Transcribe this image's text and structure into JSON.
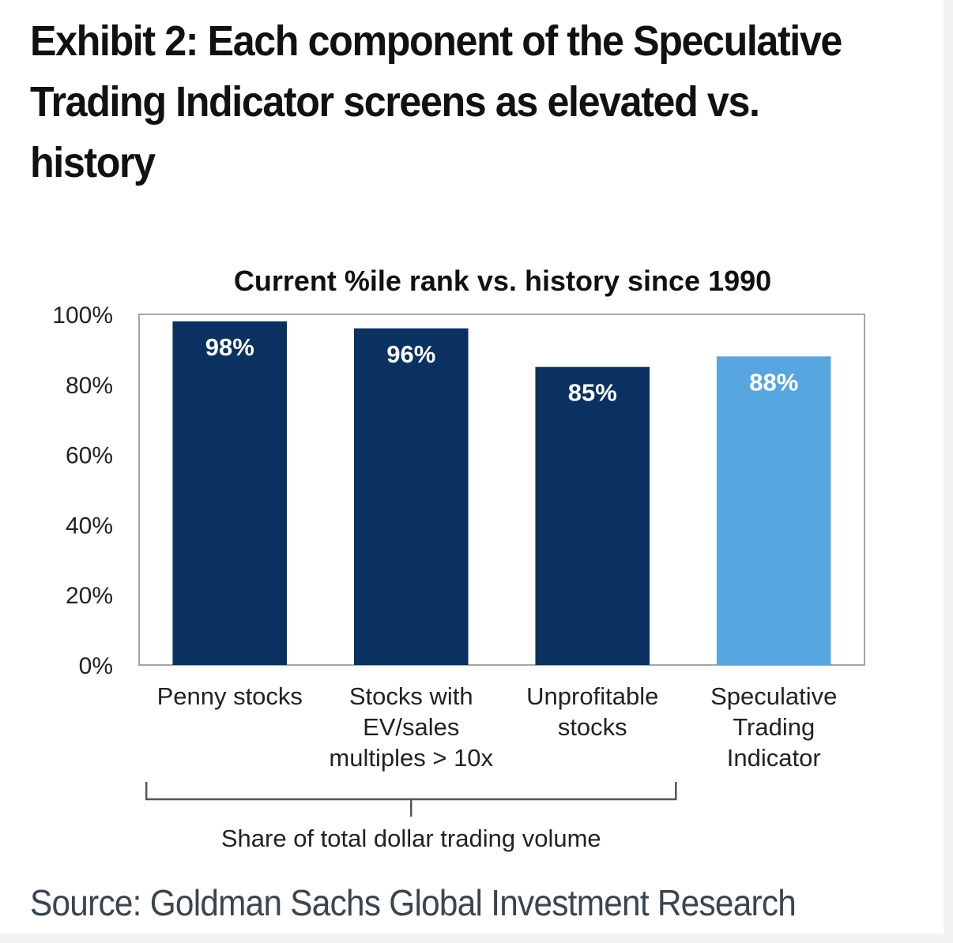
{
  "exhibit_title": "Exhibit 2: Each component of the Speculative Trading Indicator screens as elevated vs. history",
  "source": "Source: Goldman Sachs Global Investment Research",
  "colors": {
    "dark_bar": "#0a3160",
    "light_bar": "#58a6e0",
    "frame": "#a6a6a6"
  },
  "chart_data": {
    "type": "bar",
    "title": "Current %ile rank vs. history since 1990",
    "categories": [
      [
        "Penny stocks"
      ],
      [
        "Stocks with",
        "EV/sales",
        "multiples > 10x"
      ],
      [
        "Unprofitable",
        "stocks"
      ],
      [
        "Speculative",
        "Trading",
        "Indicator"
      ]
    ],
    "values": [
      98,
      96,
      85,
      88
    ],
    "value_labels": [
      "98%",
      "96%",
      "85%",
      "88%"
    ],
    "bar_colors": [
      "#0a3160",
      "#0a3160",
      "#0a3160",
      "#58a6e0"
    ],
    "ylim": [
      0,
      100
    ],
    "yticks": [
      "0%",
      "20%",
      "40%",
      "60%",
      "80%",
      "100%"
    ],
    "xlabel": "",
    "ylabel": "",
    "grid": false,
    "bracket": {
      "label": "Share of total dollar trading volume",
      "spans_categories": [
        0,
        2
      ]
    }
  }
}
